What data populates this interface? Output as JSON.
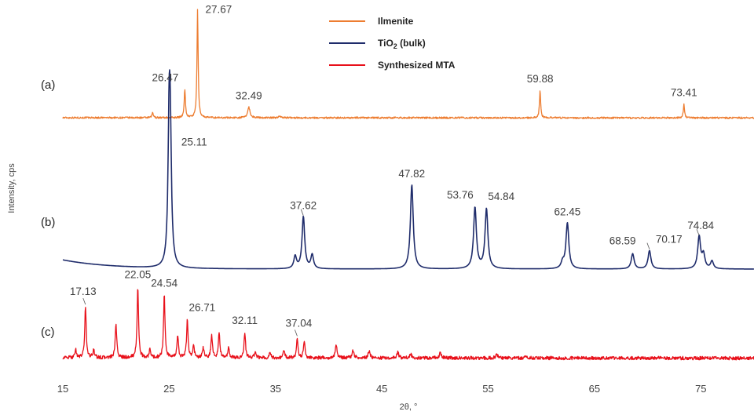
{
  "chart_data": {
    "type": "line",
    "xlabel": "2θ, °",
    "ylabel": "Intensity, cps",
    "xlim": [
      15,
      80
    ],
    "x_ticks": [
      15,
      25,
      35,
      45,
      55,
      65,
      75
    ],
    "grid": false,
    "legend_position": "top-center",
    "legend": [
      {
        "name": "Ilmenite",
        "color": "#ED7D31"
      },
      {
        "name": "TiO",
        "sub": "2",
        "suffix": " (bulk)",
        "color": "#1F2C6B"
      },
      {
        "name": "Synthesized MTA",
        "color": "#E8101A"
      }
    ],
    "series": [
      {
        "name": "Ilmenite",
        "panel": "(a)",
        "color": "#ED7D31",
        "baseline": 1.0,
        "noise": 0.08,
        "drift": -0.006,
        "peaks": [
          {
            "x": 23.45,
            "h": 0.5,
            "w": 0.07
          },
          {
            "x": 26.47,
            "h": 2.7,
            "w": 0.07
          },
          {
            "x": 27.67,
            "h": 10.2,
            "w": 0.065
          },
          {
            "x": 32.49,
            "h": 1.0,
            "w": 0.13
          },
          {
            "x": 35.4,
            "h": 0.2,
            "w": 0.1
          },
          {
            "x": 59.88,
            "h": 2.6,
            "w": 0.065
          },
          {
            "x": 73.41,
            "h": 1.3,
            "w": 0.065
          }
        ],
        "labels": [
          {
            "text": "26.47",
            "x": 26.47,
            "h": 2.7
          },
          {
            "text": "27.67",
            "x": 27.67,
            "h": 10.2
          },
          {
            "text": "32.49",
            "x": 32.49,
            "h": 1.0
          },
          {
            "text": "59.88",
            "x": 59.88,
            "h": 2.6
          },
          {
            "text": "73.41",
            "x": 73.41,
            "h": 1.3
          }
        ]
      },
      {
        "name": "TiO2 (bulk)",
        "panel": "(b)",
        "color": "#1F2C6B",
        "baseline": 1.0,
        "noise": 0.0,
        "bg_decay": 0.6,
        "peaks": [
          {
            "x": 25.0,
            "h": 8.6,
            "w": 0.13
          },
          {
            "x": 25.11,
            "h": 6.6,
            "w": 0.13
          },
          {
            "x": 36.85,
            "h": 0.8,
            "w": 0.15
          },
          {
            "x": 37.62,
            "h": 3.4,
            "w": 0.15
          },
          {
            "x": 38.45,
            "h": 0.9,
            "w": 0.15
          },
          {
            "x": 47.82,
            "h": 5.5,
            "w": 0.16
          },
          {
            "x": 53.76,
            "h": 4.0,
            "w": 0.16
          },
          {
            "x": 54.84,
            "h": 3.9,
            "w": 0.16
          },
          {
            "x": 62.0,
            "h": 0.4,
            "w": 0.16
          },
          {
            "x": 62.45,
            "h": 3.0,
            "w": 0.16
          },
          {
            "x": 68.59,
            "h": 1.0,
            "w": 0.16
          },
          {
            "x": 70.17,
            "h": 1.2,
            "w": 0.16
          },
          {
            "x": 74.84,
            "h": 2.1,
            "w": 0.16
          },
          {
            "x": 75.25,
            "h": 0.9,
            "w": 0.16
          },
          {
            "x": 76.05,
            "h": 0.5,
            "w": 0.16
          }
        ],
        "labels": [
          {
            "text": "25.11",
            "x": 25.11,
            "h": 8.6
          },
          {
            "text": "37.62",
            "x": 37.62,
            "h": 3.4
          },
          {
            "text": "47.82",
            "x": 47.82,
            "h": 5.5
          },
          {
            "text": "53.76",
            "x": 53.76,
            "h": 4.0
          },
          {
            "text": "54.84",
            "x": 54.84,
            "h": 3.9
          },
          {
            "text": "62.45",
            "x": 62.45,
            "h": 3.0
          },
          {
            "text": "68.59",
            "x": 68.59,
            "h": 1.0
          },
          {
            "text": "70.17",
            "x": 70.17,
            "h": 1.2
          },
          {
            "text": "74.84",
            "x": 74.84,
            "h": 2.1
          }
        ]
      },
      {
        "name": "Synthesized MTA",
        "panel": "(c)",
        "color": "#E8101A",
        "baseline": 1.0,
        "noise": 0.12,
        "drift": -0.01,
        "peaks": [
          {
            "x": 16.2,
            "h": 0.6,
            "w": 0.08
          },
          {
            "x": 17.13,
            "h": 3.6,
            "w": 0.08
          },
          {
            "x": 17.9,
            "h": 0.6,
            "w": 0.08
          },
          {
            "x": 20.0,
            "h": 2.4,
            "w": 0.08
          },
          {
            "x": 22.05,
            "h": 5.0,
            "w": 0.08
          },
          {
            "x": 23.2,
            "h": 0.6,
            "w": 0.08
          },
          {
            "x": 24.54,
            "h": 4.4,
            "w": 0.08
          },
          {
            "x": 25.8,
            "h": 1.6,
            "w": 0.08
          },
          {
            "x": 26.71,
            "h": 2.7,
            "w": 0.08
          },
          {
            "x": 27.3,
            "h": 0.9,
            "w": 0.08
          },
          {
            "x": 28.2,
            "h": 0.7,
            "w": 0.08
          },
          {
            "x": 29.0,
            "h": 1.6,
            "w": 0.08
          },
          {
            "x": 29.7,
            "h": 1.8,
            "w": 0.08
          },
          {
            "x": 30.6,
            "h": 0.7,
            "w": 0.08
          },
          {
            "x": 32.11,
            "h": 1.8,
            "w": 0.08
          },
          {
            "x": 33.1,
            "h": 0.5,
            "w": 0.08
          },
          {
            "x": 34.5,
            "h": 0.4,
            "w": 0.08
          },
          {
            "x": 35.8,
            "h": 0.5,
            "w": 0.08
          },
          {
            "x": 37.04,
            "h": 1.4,
            "w": 0.08
          },
          {
            "x": 37.7,
            "h": 1.2,
            "w": 0.08
          },
          {
            "x": 40.7,
            "h": 0.9,
            "w": 0.1
          },
          {
            "x": 42.3,
            "h": 0.5,
            "w": 0.1
          },
          {
            "x": 43.8,
            "h": 0.5,
            "w": 0.1
          },
          {
            "x": 46.5,
            "h": 0.4,
            "w": 0.1
          },
          {
            "x": 47.7,
            "h": 0.3,
            "w": 0.1
          },
          {
            "x": 50.5,
            "h": 0.4,
            "w": 0.1
          },
          {
            "x": 55.8,
            "h": 0.3,
            "w": 0.1
          },
          {
            "x": 58.5,
            "h": 0.2,
            "w": 0.1
          }
        ],
        "labels": [
          {
            "text": "17.13",
            "x": 17.13,
            "h": 3.6
          },
          {
            "text": "22.05",
            "x": 22.05,
            "h": 5.0
          },
          {
            "text": "24.54",
            "x": 24.54,
            "h": 4.4
          },
          {
            "text": "26.71",
            "x": 26.71,
            "h": 2.7
          },
          {
            "text": "32.11",
            "x": 32.11,
            "h": 1.8
          },
          {
            "text": "37.04",
            "x": 37.04,
            "h": 1.4
          }
        ]
      }
    ]
  }
}
